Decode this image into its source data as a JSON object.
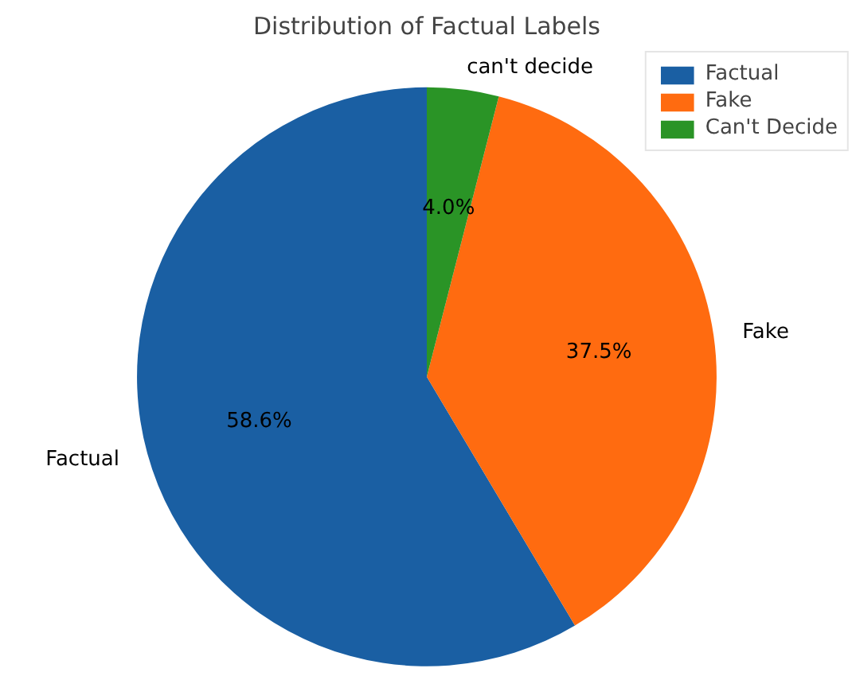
{
  "chart_data": {
    "type": "pie",
    "title": "Distribution of Factual Labels",
    "categories": [
      "Factual",
      "Fake",
      "Can't Decide"
    ],
    "values": [
      58.6,
      37.5,
      4.0
    ],
    "colors": [
      "#1a5fa3",
      "#ff6b10",
      "#2a9426"
    ],
    "value_labels": [
      "58.6%",
      "37.5%",
      "4.0%"
    ],
    "annotations": [
      {
        "text": "Factual",
        "x": "Factual"
      },
      {
        "text": "Fake",
        "x": "Fake"
      },
      {
        "text": "can't decide",
        "x": "Can't Decide"
      }
    ],
    "legend": "top right"
  }
}
